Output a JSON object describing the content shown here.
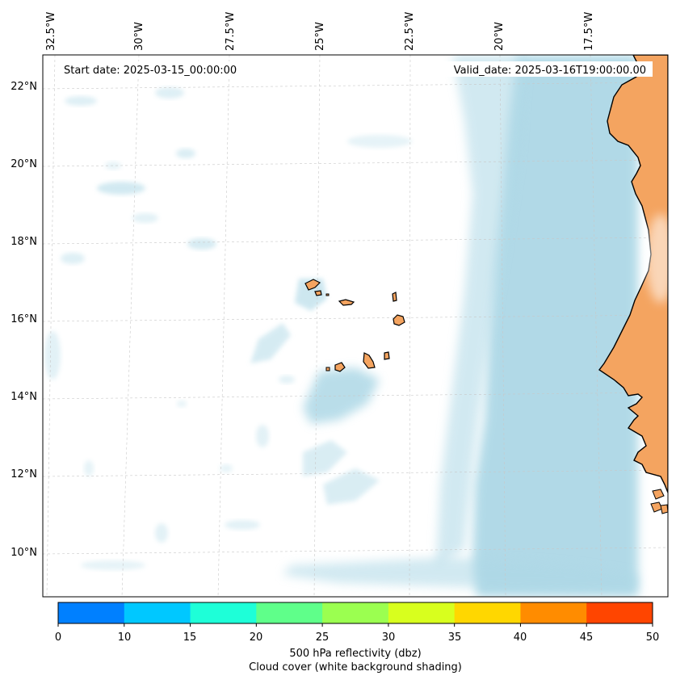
{
  "map": {
    "start_date": "Start date: 2025-03-15_00:00:00",
    "valid_date": "Valid_date: 2025-03-16T19:00:00.00",
    "longitude_labels": [
      "32.5°W",
      "30°W",
      "27.5°W",
      "25°W",
      "22.5°W",
      "20°W",
      "17.5°W"
    ],
    "latitude_labels": [
      "22°N",
      "20°N",
      "18°N",
      "16°N",
      "14°N",
      "12°N",
      "10°N"
    ],
    "colors": {
      "land": "#f4a460",
      "cloud": "#add8e6",
      "coastline": "#000000",
      "ocean": "#ffffff"
    }
  },
  "colorbar": {
    "ticks": [
      "0",
      "10",
      "15",
      "20",
      "25",
      "30",
      "35",
      "40",
      "45",
      "50"
    ],
    "colors": [
      "#0080ff",
      "#00c8ff",
      "#1effd8",
      "#5fff8a",
      "#9bff50",
      "#d8ff1e",
      "#ffd700",
      "#ff8c00",
      "#ff4500"
    ],
    "label_line1": "500 hPa reflectivity (dbz)",
    "label_line2": "Cloud cover (white background shading)"
  }
}
